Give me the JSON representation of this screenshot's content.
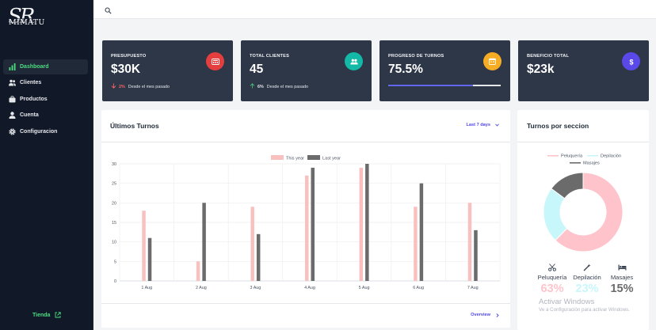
{
  "brand": {
    "monogram": "SR",
    "wordmark": "MIMATU"
  },
  "sidebar": {
    "items": [
      {
        "label": "Dashboard",
        "icon": "bar-chart-icon",
        "active": true
      },
      {
        "label": "Clientes",
        "icon": "users-icon",
        "active": false
      },
      {
        "label": "Productos",
        "icon": "briefcase-icon",
        "active": false
      },
      {
        "label": "Cuenta",
        "icon": "user-icon",
        "active": false
      },
      {
        "label": "Configuracion",
        "icon": "gear-icon",
        "active": false
      }
    ],
    "footer_link": {
      "label": "Tienda",
      "icon": "external-link-icon"
    }
  },
  "topbar": {
    "search_icon": "search-icon"
  },
  "cards": [
    {
      "label": "PRESUPUESTO",
      "value": "$30K",
      "icon": "wallet-icon",
      "badge_color": "#e53e3e",
      "trend": "down",
      "trend_color": "#f56565",
      "pct": "2%",
      "note": "Desde el mes pasado"
    },
    {
      "label": "TOTAL CLIENTES",
      "value": "45",
      "icon": "users-icon",
      "badge_color": "#14b8a6",
      "trend": "up",
      "trend_color": "#48bb78",
      "pct": "6%",
      "note": "Desde el mes pasado"
    },
    {
      "label": "PROGRESO DE TURNOS",
      "value": "75.5%",
      "icon": "calendar-icon",
      "badge_color": "#f6ad24",
      "progress": 0.755
    },
    {
      "label": "BENEFICIO TOTAL",
      "value": "$23k",
      "icon": "dollar-icon",
      "badge_color": "#5a49e8"
    }
  ],
  "turnos_panel": {
    "title": "Últimos Turnos",
    "range_label": "Last 7 days",
    "footer_link": "Overview"
  },
  "chart_data": {
    "type": "bar",
    "categories": [
      "1 Aug",
      "2 Aug",
      "3 Aug",
      "4 Aug",
      "5 Aug",
      "6 Aug",
      "7 Aug"
    ],
    "series": [
      {
        "name": "This year",
        "color": "#f9c0c0",
        "values": [
          18,
          5,
          19,
          27,
          29,
          19,
          20
        ]
      },
      {
        "name": "Last year",
        "color": "#6b6b6b",
        "values": [
          11,
          20,
          12,
          29,
          30,
          25,
          13
        ]
      }
    ],
    "yticks": [
      0,
      5,
      10,
      15,
      20,
      25,
      30
    ],
    "ylim": [
      0,
      30
    ],
    "grid": true,
    "legend": "top"
  },
  "secciones_panel": {
    "title": "Turnos por seccion",
    "segments": [
      {
        "name": "Peluquería",
        "value": 63,
        "display": "63%",
        "color": "#ffc4cb",
        "icon": "scissors-icon"
      },
      {
        "name": "Depilación",
        "value": 23,
        "display": "23%",
        "color": "#c7f6fb",
        "icon": "wand-icon"
      },
      {
        "name": "Masajes",
        "value": 15,
        "display": "15%",
        "color": "#6b6b6b",
        "icon": "bed-icon"
      }
    ]
  },
  "watermark": {
    "line1": "Activar Windows",
    "line2": "Ve a Configuración para activar Windows."
  }
}
